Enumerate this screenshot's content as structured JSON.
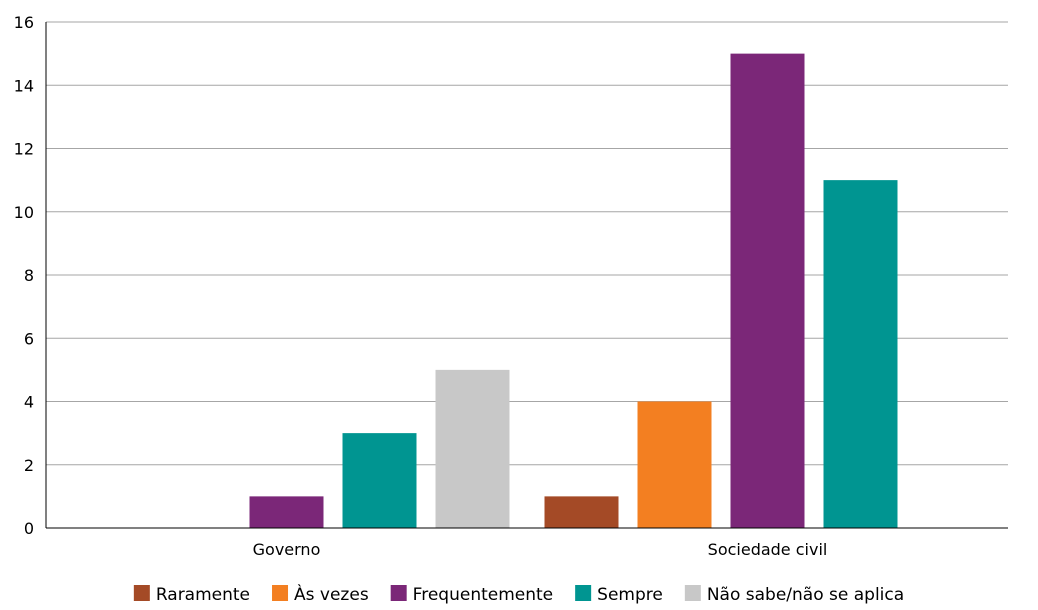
{
  "chart_data": {
    "type": "bar",
    "title": "",
    "xlabel": "",
    "ylabel": "",
    "categories": [
      "Governo",
      "Sociedade civil"
    ],
    "ylim": [
      0,
      16
    ],
    "yticks": [
      0,
      2,
      4,
      6,
      8,
      10,
      12,
      14,
      16
    ],
    "grid": true,
    "legend_position": "bottom",
    "series": [
      {
        "name": "Raramente",
        "color": "#a44a26",
        "values": [
          0,
          1
        ]
      },
      {
        "name": "Às vezes",
        "color": "#f37f21",
        "values": [
          0,
          4
        ]
      },
      {
        "name": "Frequentemente",
        "color": "#7b2778",
        "values": [
          1,
          15
        ]
      },
      {
        "name": "Sempre",
        "color": "#009591",
        "values": [
          3,
          11
        ]
      },
      {
        "name": "Não sabe/não se aplica",
        "color": "#c8c8c8",
        "values": [
          5,
          0
        ]
      }
    ]
  }
}
